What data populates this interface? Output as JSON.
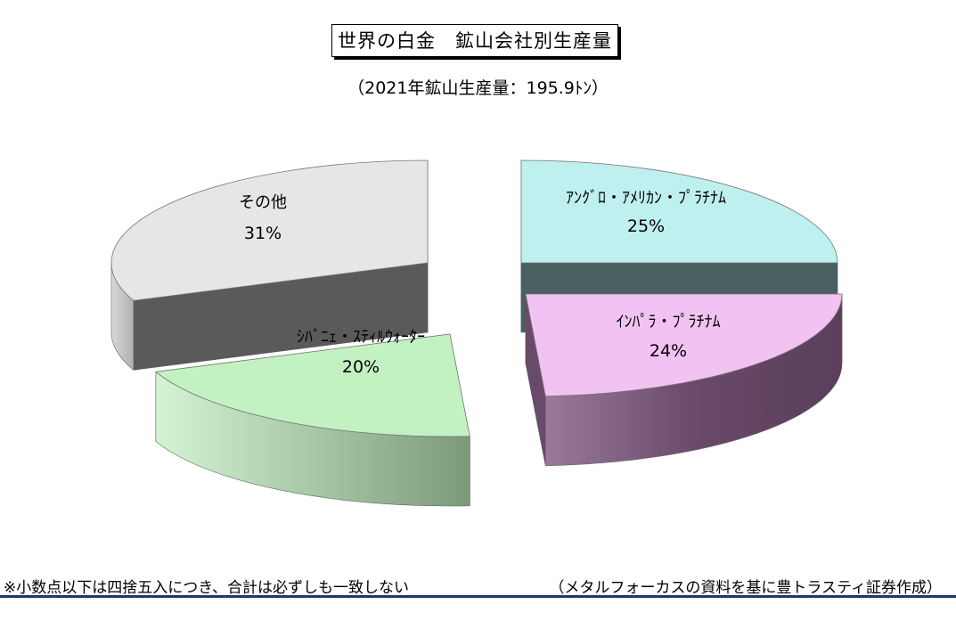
{
  "chart_data": {
    "type": "pie",
    "title": "世界の白金　鉱山会社別生産量",
    "subtitle": "（2021年鉱山生産量：195.9ﾄﾝ）",
    "slices": [
      {
        "label": "ｱﾝｸﾞﾛ・ｱﾒﾘｶﾝ・ﾌﾟﾗﾁﾅﾑ",
        "value": 25,
        "value_label": "25%",
        "color": "#bff0f0",
        "dark": "#4a6060"
      },
      {
        "label": "ｲﾝﾊﾟﾗ・ﾌﾟﾗﾁﾅﾑ",
        "value": 24,
        "value_label": "24%",
        "color": "#f2c2f2",
        "dark": "#6a4a6a"
      },
      {
        "label": "ｼﾊﾞﾆｪ・ｽﾃｨﾙｳｫｰﾀｰ",
        "value": 20,
        "value_label": "20%",
        "color": "#c2f2c2",
        "dark": "#7a9a7a"
      },
      {
        "label": "その他",
        "value": 31,
        "value_label": "31%",
        "color": "#e6e6e6",
        "dark": "#5a5a5a"
      }
    ],
    "legend": "none"
  },
  "footer": {
    "note": "※小数点以下は四捨五入につき、合計は必ずしも一致しない",
    "source": "（メタルフォーカスの資料を基に豊トラスティ証券作成）"
  }
}
